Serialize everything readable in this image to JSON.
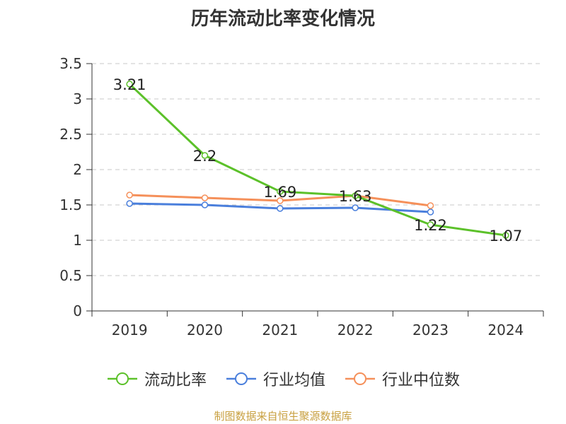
{
  "chart_data": {
    "type": "line",
    "title": "历年流动比率变化情况",
    "categories": [
      "2019",
      "2020",
      "2021",
      "2022",
      "2023",
      "2024"
    ],
    "series": [
      {
        "name": "流动比率",
        "color": "#5cc12a",
        "values": [
          3.21,
          2.2,
          1.69,
          1.63,
          1.22,
          1.07
        ],
        "labels": [
          "3.21",
          "2.2",
          "1.69",
          "1.63",
          "1.22",
          "1.07"
        ]
      },
      {
        "name": "行业均值",
        "color": "#4a7fdc",
        "values": [
          1.52,
          1.5,
          1.45,
          1.46,
          1.4,
          null
        ]
      },
      {
        "name": "行业中位数",
        "color": "#f5905a",
        "values": [
          1.64,
          1.6,
          1.56,
          1.63,
          1.49,
          null
        ]
      }
    ],
    "yticks": [
      "0",
      "0.5",
      "1",
      "1.5",
      "2",
      "2.5",
      "3",
      "3.5"
    ],
    "ylim": [
      0,
      3.5
    ],
    "grid": true,
    "legend_position": "bottom"
  },
  "source_note": "制图数据来自恒生聚源数据库"
}
